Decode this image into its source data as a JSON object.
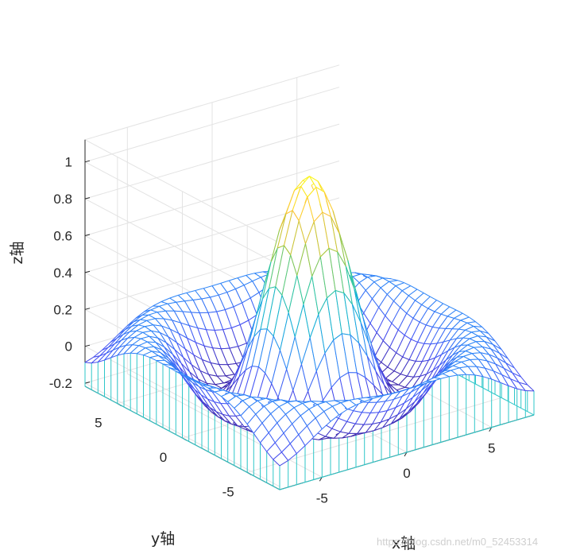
{
  "chart_data": {
    "type": "mesh",
    "surface": "z = sin(r)/r, r = sqrt(x^2 + y^2)",
    "x": [
      -7.5,
      -7,
      -6.5,
      -6,
      -5.5,
      -5,
      -4.5,
      -4,
      -3.5,
      -3,
      -2.5,
      -2,
      -1.5,
      -1,
      -0.5,
      0,
      0.5,
      1,
      1.5,
      2,
      2.5,
      3,
      3.5,
      4,
      4.5,
      5,
      5.5,
      6,
      6.5,
      7,
      7.5
    ],
    "y": [
      -7.5,
      -7,
      -6.5,
      -6,
      -5.5,
      -5,
      -4.5,
      -4,
      -3.5,
      -3,
      -2.5,
      -2,
      -1.5,
      -1,
      -0.5,
      0,
      0.5,
      1,
      1.5,
      2,
      2.5,
      3,
      3.5,
      4,
      4.5,
      5,
      5.5,
      6,
      6.5,
      7,
      7.5
    ],
    "z_range": [
      -0.217,
      1.0
    ],
    "curtain": true,
    "colormap": "parula",
    "xlabel": "x轴",
    "ylabel": "y轴",
    "zlabel": "z轴",
    "x_ticks": [
      "-5",
      "0",
      "5"
    ],
    "y_ticks": [
      "-5",
      "0",
      "5"
    ],
    "z_ticks": [
      "-0.2",
      "0",
      "0.2",
      "0.4",
      "0.6",
      "0.8",
      "1"
    ],
    "grid": true,
    "view": "default 3-D view (az -37.5, el 30)"
  },
  "watermark": "https://blog.csdn.net/m0_52453314",
  "colors": {
    "axis": "#262626",
    "grid": "#e3e3e3",
    "curtain": "#2ec7c9",
    "surface_low": "#3e26a8",
    "surface_high": "#f9fb0e"
  }
}
